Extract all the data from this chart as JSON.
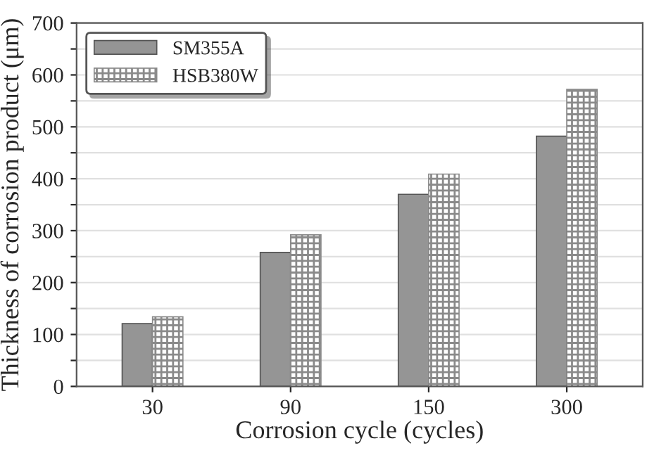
{
  "chart_data": {
    "type": "bar",
    "xlabel": "Corrosion cycle (cycles)",
    "ylabel": "Thickness of corrosion product (μm)",
    "categories": [
      "30",
      "90",
      "150",
      "300"
    ],
    "series": [
      {
        "name": "SM355A",
        "color": "#959595",
        "values": [
          121,
          258,
          370,
          482
        ]
      },
      {
        "name": "HSB380W",
        "color": "#8a8a8a",
        "values": [
          134,
          292,
          409,
          572
        ]
      }
    ],
    "ylim": [
      0,
      700
    ],
    "yticks": [
      0,
      {
        "value": 50,
        "label": null
      },
      100,
      {
        "value": 150,
        "label": null
      },
      200,
      {
        "value": 250,
        "label": null
      },
      300,
      {
        "value": 350,
        "label": null
      },
      400,
      {
        "value": 450,
        "label": null
      },
      500,
      {
        "value": 550,
        "label": null
      },
      600,
      {
        "value": 650,
        "label": null
      },
      700
    ],
    "grid": "y",
    "legend": "top left"
  }
}
